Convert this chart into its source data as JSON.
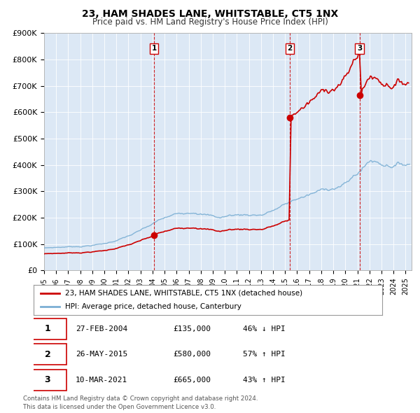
{
  "title": "23, HAM SHADES LANE, WHITSTABLE, CT5 1NX",
  "subtitle": "Price paid vs. HM Land Registry's House Price Index (HPI)",
  "hpi_label": "HPI: Average price, detached house, Canterbury",
  "price_label": "23, HAM SHADES LANE, WHITSTABLE, CT5 1NX (detached house)",
  "hpi_color": "#7bafd4",
  "price_color": "#cc0000",
  "plot_bg_color": "#dce8f5",
  "ylim": [
    0,
    900000
  ],
  "yticks": [
    0,
    100000,
    200000,
    300000,
    400000,
    500000,
    600000,
    700000,
    800000,
    900000
  ],
  "ytick_labels": [
    "£0",
    "£100K",
    "£200K",
    "£300K",
    "£400K",
    "£500K",
    "£600K",
    "£700K",
    "£800K",
    "£900K"
  ],
  "xmin": 1995.0,
  "xmax": 2025.5,
  "sales": [
    {
      "label": "1",
      "date_num": 2004.12,
      "price": 135000,
      "note": "27-FEB-2004",
      "price_str": "£135,000",
      "hpi_note": "46% ↓ HPI"
    },
    {
      "label": "2",
      "date_num": 2015.38,
      "price": 580000,
      "note": "26-MAY-2015",
      "price_str": "£580,000",
      "hpi_note": "57% ↑ HPI"
    },
    {
      "label": "3",
      "date_num": 2021.18,
      "price": 665000,
      "note": "10-MAR-2021",
      "price_str": "£665,000",
      "hpi_note": "43% ↑ HPI"
    }
  ],
  "footer_line1": "Contains HM Land Registry data © Crown copyright and database right 2024.",
  "footer_line2": "This data is licensed under the Open Government Licence v3.0.",
  "sale_marker_color": "#cc0000",
  "dashed_line_color": "#cc0000"
}
